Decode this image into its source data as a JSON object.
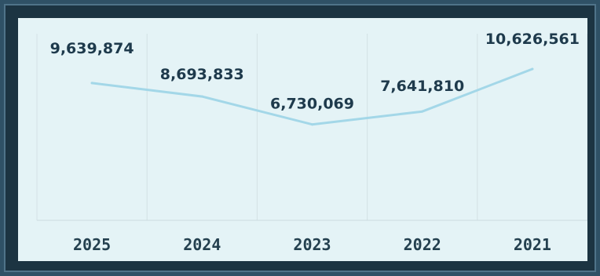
{
  "chart_data": {
    "type": "line",
    "categories": [
      "2025",
      "2024",
      "2023",
      "2022",
      "2021"
    ],
    "series": [
      {
        "values": [
          9639874,
          8693833,
          6730069,
          7641810,
          10626561
        ]
      }
    ],
    "data_labels": [
      "9,639,874",
      "8,693,833",
      "6,730,069",
      "7,641,810",
      "10,626,561"
    ],
    "ylim": [
      0,
      12000000
    ],
    "grid": "vertical",
    "legend": "none",
    "line_color": "#a3d7e8",
    "label_color": "#1e3a4c",
    "tick_color": "#24404f"
  }
}
